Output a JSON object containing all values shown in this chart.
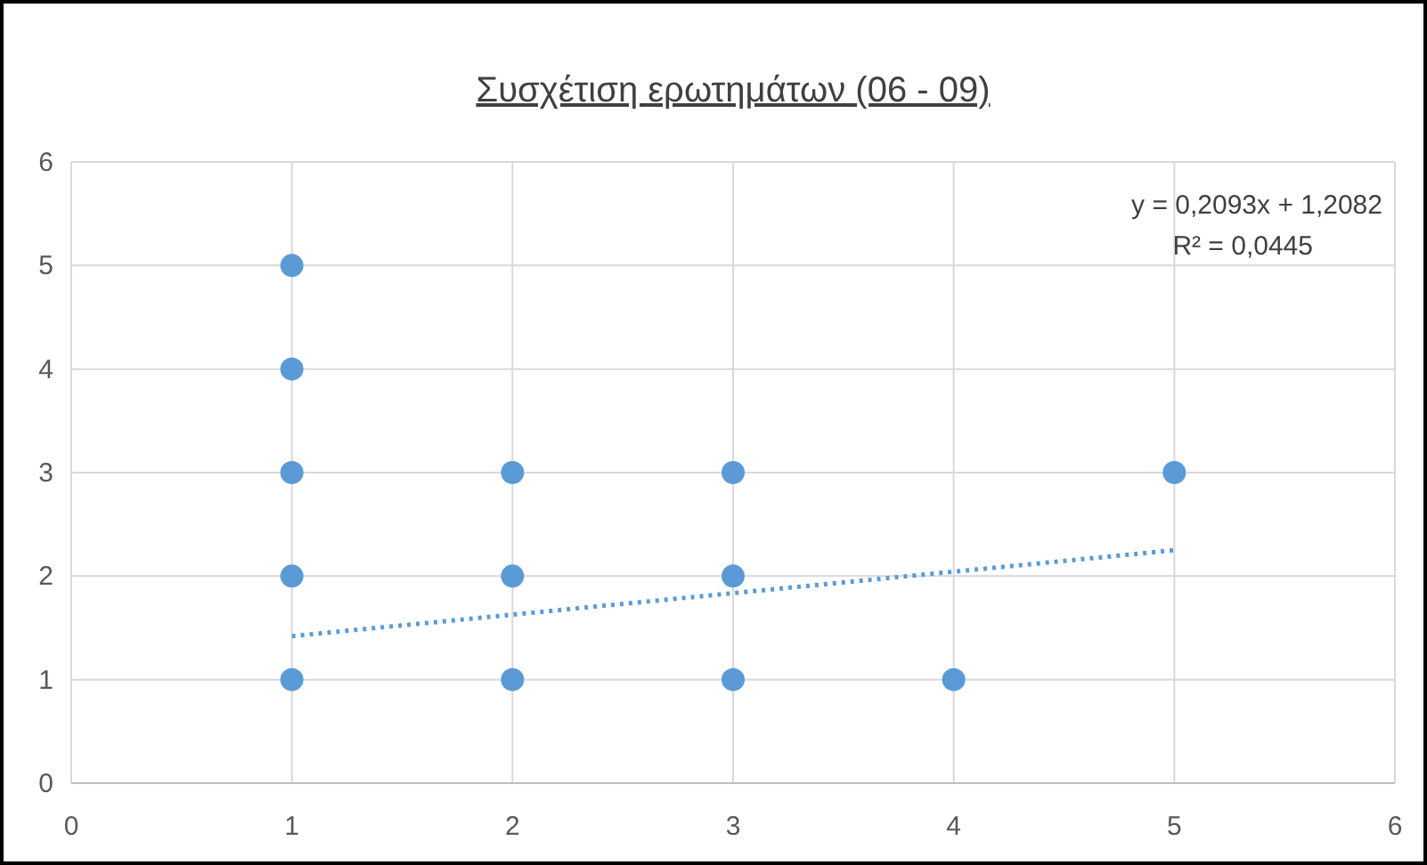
{
  "chart_data": {
    "type": "scatter",
    "title": "Συσχέτιση ερωτημάτων (06 - 09)",
    "xlim": [
      0,
      6
    ],
    "xticks": [
      0,
      1,
      2,
      3,
      4,
      5,
      6
    ],
    "ylim": [
      0,
      6
    ],
    "yticks": [
      0,
      1,
      2,
      3,
      4,
      5,
      6
    ],
    "grid": true,
    "series": [
      {
        "marker": "circle",
        "color": "#5b9bd5",
        "x": [
          1,
          1,
          1,
          1,
          1,
          2,
          2,
          2,
          3,
          3,
          3,
          4,
          5
        ],
        "values": [
          5,
          4,
          3,
          2,
          1,
          3,
          2,
          1,
          3,
          2,
          1,
          1,
          3
        ]
      },
      {
        "type": "line",
        "marker": "none",
        "color": "#5b9bd5",
        "line_style": "dotted",
        "x": [
          1,
          5
        ],
        "values": [
          1.42,
          2.25
        ]
      }
    ],
    "annotations": [
      "y = 0,2093x + 1,2082",
      "R² = 0,0445"
    ]
  }
}
